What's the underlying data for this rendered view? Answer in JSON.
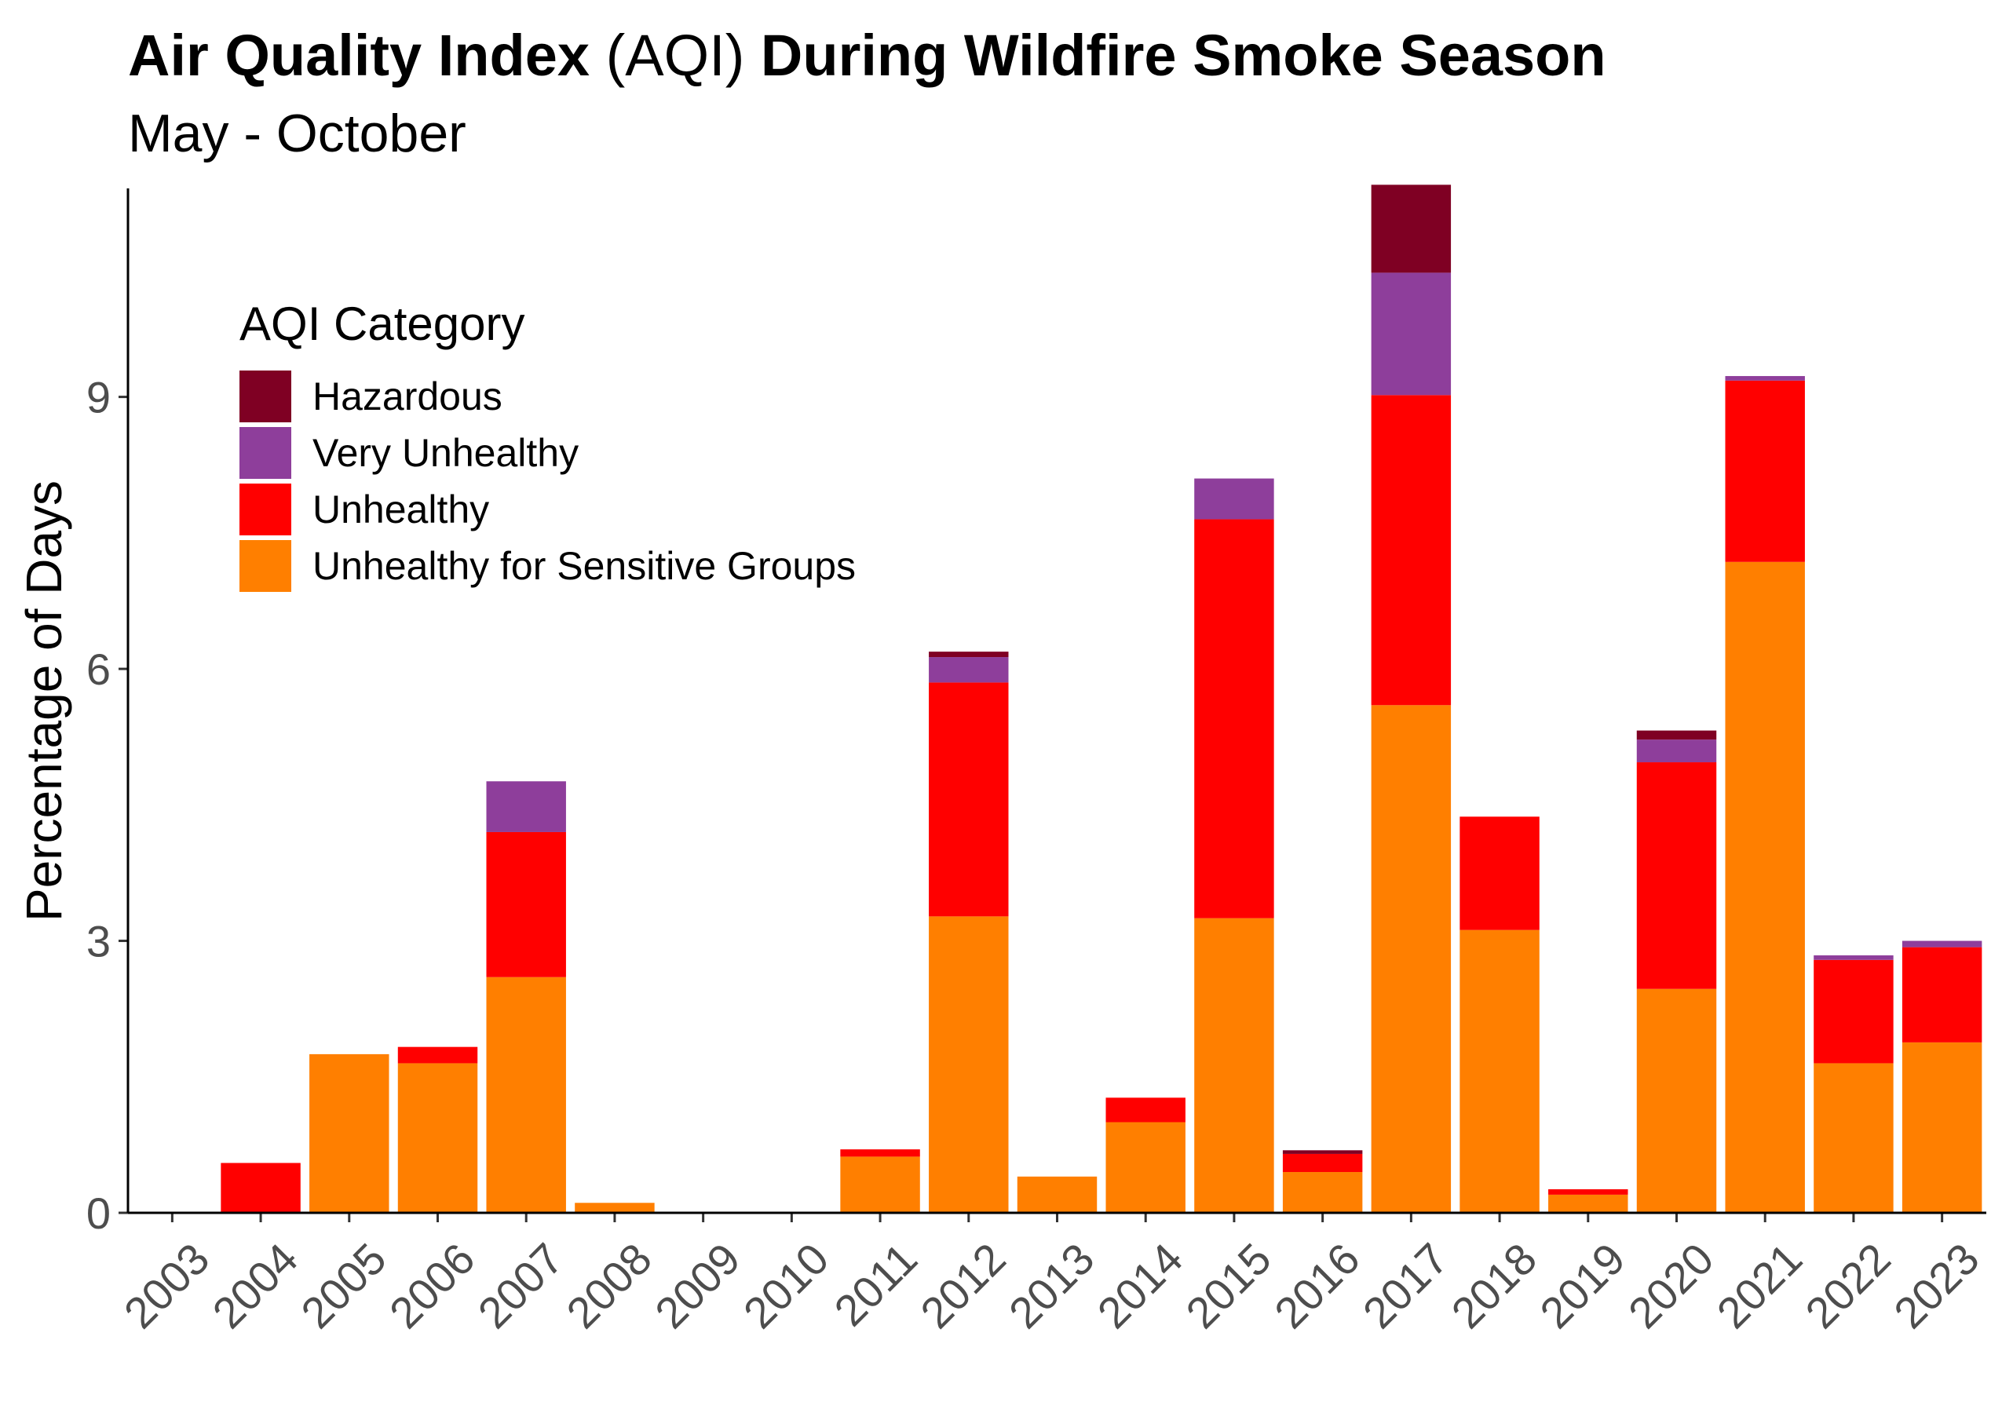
{
  "title_bold_1": "Air Quality Index",
  "title_plain": " (AQI) ",
  "title_bold_2": "During Wildfire Smoke Season",
  "subtitle": "May - October",
  "chart_data": {
    "type": "bar",
    "stacked": true,
    "title": "Air Quality Index (AQI) During Wildfire Smoke Season",
    "subtitle": "May - October",
    "xlabel": "",
    "ylabel": "Percentage of Days",
    "ylim": [
      0,
      11.3
    ],
    "yticks": [
      0,
      3,
      6,
      9
    ],
    "grid": false,
    "legend_title": "AQI Category",
    "legend_position": "top-left",
    "categories": [
      "2003",
      "2004",
      "2005",
      "2006",
      "2007",
      "2008",
      "2009",
      "2010",
      "2011",
      "2012",
      "2013",
      "2014",
      "2015",
      "2016",
      "2017",
      "2018",
      "2019",
      "2020",
      "2021",
      "2022",
      "2023"
    ],
    "series": [
      {
        "name": "Unhealthy for Sensitive Groups",
        "color": "#FF7F00",
        "values": [
          0,
          0,
          1.75,
          1.65,
          2.6,
          0.11,
          0,
          0,
          0.62,
          3.27,
          0.4,
          1.0,
          3.25,
          0.45,
          5.6,
          3.12,
          0.2,
          2.47,
          7.18,
          1.65,
          1.88
        ]
      },
      {
        "name": "Unhealthy",
        "color": "#FF0000",
        "values": [
          0,
          0.55,
          0,
          0.18,
          1.6,
          0,
          0,
          0,
          0.08,
          2.58,
          0,
          0.27,
          4.4,
          0.2,
          3.42,
          1.25,
          0.06,
          2.5,
          2.0,
          1.14,
          1.05
        ]
      },
      {
        "name": "Very Unhealthy",
        "color": "#8E3E9B",
        "values": [
          0,
          0,
          0,
          0,
          0.56,
          0,
          0,
          0,
          0,
          0.28,
          0,
          0,
          0.45,
          0,
          1.35,
          0,
          0,
          0.25,
          0.05,
          0.05,
          0.07
        ]
      },
      {
        "name": "Hazardous",
        "color": "#7F0023",
        "values": [
          0,
          0,
          0,
          0,
          0,
          0,
          0,
          0,
          0,
          0.06,
          0,
          0,
          0,
          0.04,
          0.97,
          0,
          0,
          0.1,
          0,
          0,
          0
        ]
      }
    ]
  }
}
